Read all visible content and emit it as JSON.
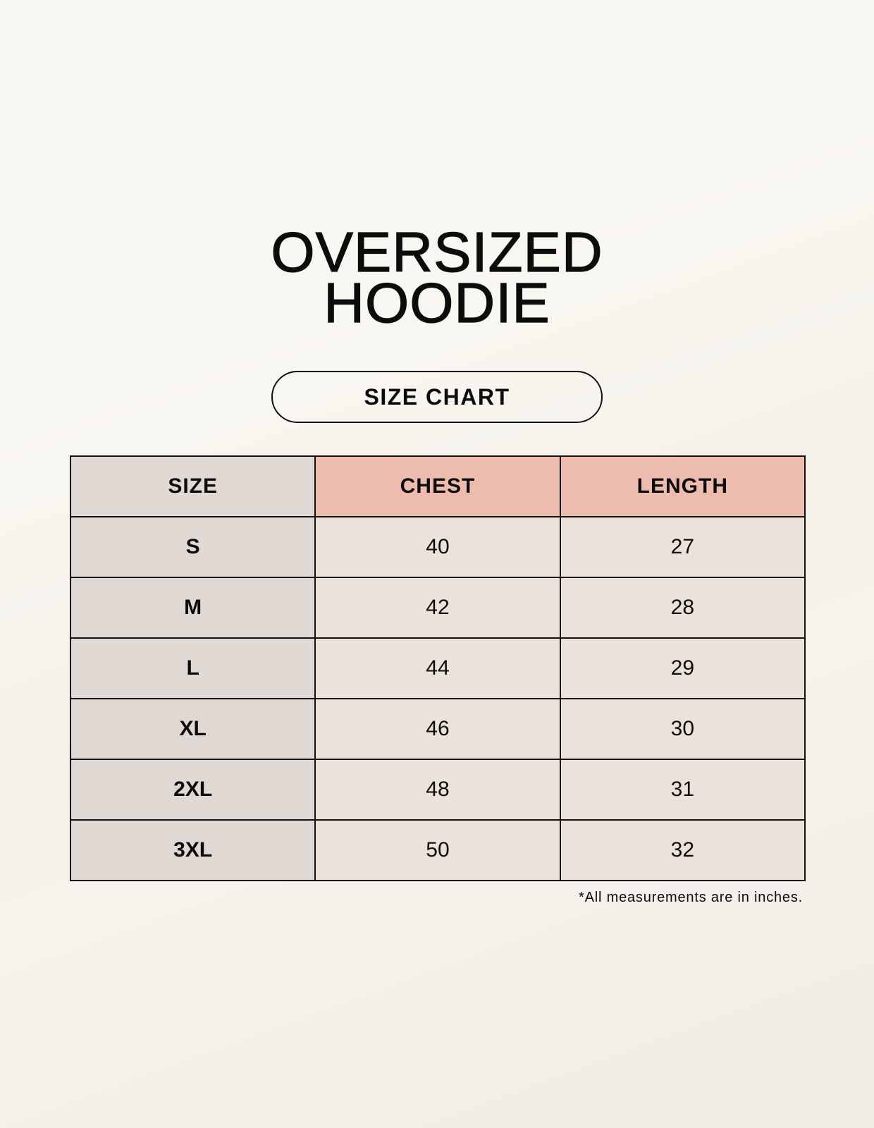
{
  "title": {
    "line1": "OVERSIZED",
    "line2": "HOODIE"
  },
  "subtitle": "SIZE CHART",
  "table": {
    "headers": [
      "SIZE",
      "CHEST",
      "LENGTH"
    ],
    "rows": [
      [
        "S",
        "40",
        "27"
      ],
      [
        "M",
        "42",
        "28"
      ],
      [
        "L",
        "44",
        "29"
      ],
      [
        "XL",
        "46",
        "30"
      ],
      [
        "2XL",
        "48",
        "31"
      ],
      [
        "3XL",
        "50",
        "32"
      ]
    ]
  },
  "footnote": "*All measurements are in inches.",
  "colors": {
    "size_column": "#e0d9d3",
    "header_accent": "#eebcae",
    "value_cells": "#ebe3d9",
    "background": "#f8f6f0"
  }
}
